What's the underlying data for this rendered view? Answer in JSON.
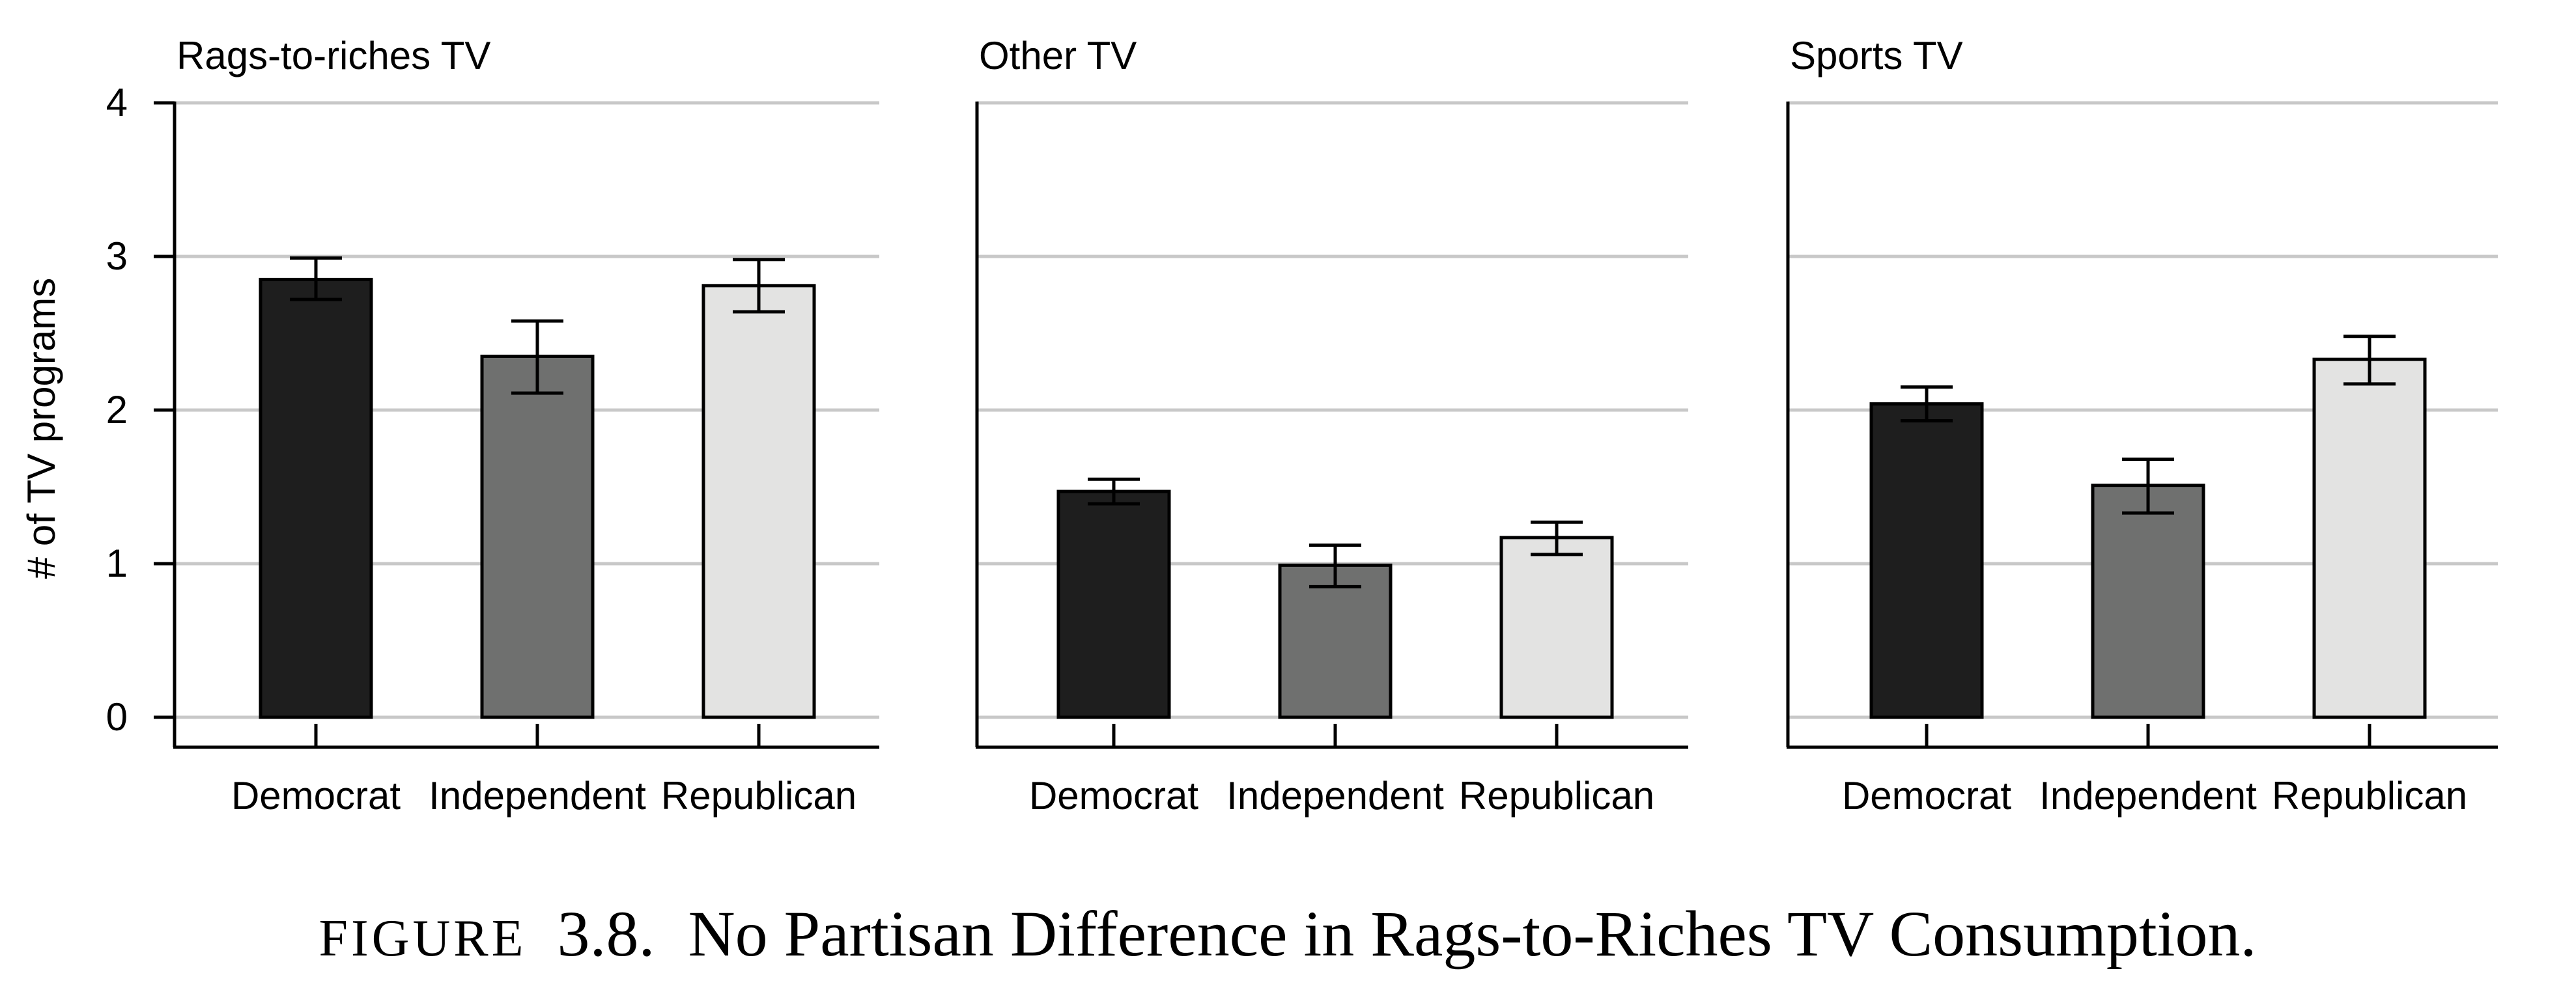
{
  "chart_data": [
    {
      "type": "bar",
      "title": "Rags-to-riches TV",
      "ylabel": "# of TV programs",
      "xlabel": "",
      "ylim": [
        0,
        4
      ],
      "yticks": [
        "0",
        "1",
        "2",
        "3",
        "4"
      ],
      "categories": [
        "Democrat",
        "Independent",
        "Republican"
      ],
      "values": [
        2.85,
        2.35,
        2.81
      ],
      "error_low": [
        2.72,
        2.11,
        2.64
      ],
      "error_high": [
        2.99,
        2.58,
        2.98
      ],
      "colors": [
        "#1e1e1e",
        "#6f706f",
        "#e3e3e2"
      ],
      "grid": true
    },
    {
      "type": "bar",
      "title": "Other TV",
      "ylim": [
        0,
        4
      ],
      "categories": [
        "Democrat",
        "Independent",
        "Republican"
      ],
      "values": [
        1.47,
        0.99,
        1.17
      ],
      "error_low": [
        1.39,
        0.85,
        1.06
      ],
      "error_high": [
        1.55,
        1.12,
        1.27
      ],
      "colors": [
        "#1e1e1e",
        "#6f706f",
        "#e3e3e2"
      ],
      "grid": true
    },
    {
      "type": "bar",
      "title": "Sports TV",
      "ylim": [
        0,
        4
      ],
      "categories": [
        "Democrat",
        "Independent",
        "Republican"
      ],
      "values": [
        2.04,
        1.51,
        2.33
      ],
      "error_low": [
        1.93,
        1.33,
        2.17
      ],
      "error_high": [
        2.15,
        1.68,
        2.48
      ],
      "colors": [
        "#1e1e1e",
        "#6f706f",
        "#e3e3e2"
      ],
      "grid": true
    }
  ],
  "caption": {
    "label": "FIGURE",
    "number": "3.8.",
    "text": "No Partisan Difference in Rags-to-Riches TV Consumption."
  },
  "colors": {
    "grid": "#c8c8c8",
    "axis": "#000000",
    "bar_stroke": "#000000"
  }
}
